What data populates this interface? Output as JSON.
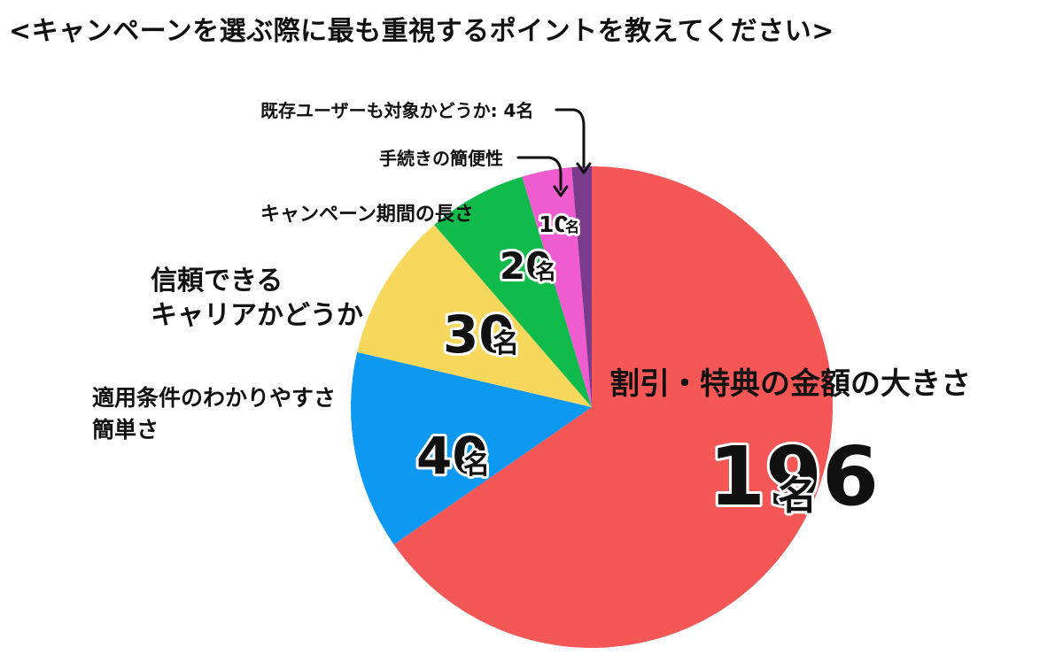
{
  "chart_data": {
    "type": "pie",
    "title": "<キャンペーンを選ぶ際に最も重視するポイントを教えてください>",
    "unit": "名",
    "start_angle_deg": 0,
    "direction": "clockwise",
    "slices": [
      {
        "label": "割引・特典の金額の大きさ",
        "value": 196,
        "value_text": "196",
        "color": "#f55656"
      },
      {
        "label": "適用条件のわかりやすさ\n簡単さ",
        "value": 40,
        "value_text": "40",
        "color": "#0d99f2"
      },
      {
        "label": "信頼できる\nキャリアかどうか",
        "value": 30,
        "value_text": "30",
        "color": "#f8d85c"
      },
      {
        "label": "キャンペーン期間の長さ",
        "value": 20,
        "value_text": "20",
        "color": "#10bb4c"
      },
      {
        "label": "手続きの簡便性",
        "value": 10,
        "value_text": "10",
        "color": "#ee5cd0"
      },
      {
        "label": "既存ユーザーも対象かどうか",
        "value": 4,
        "value_text": "4",
        "color": "#7b3a8c",
        "label_suffix": ": 4名"
      }
    ]
  }
}
